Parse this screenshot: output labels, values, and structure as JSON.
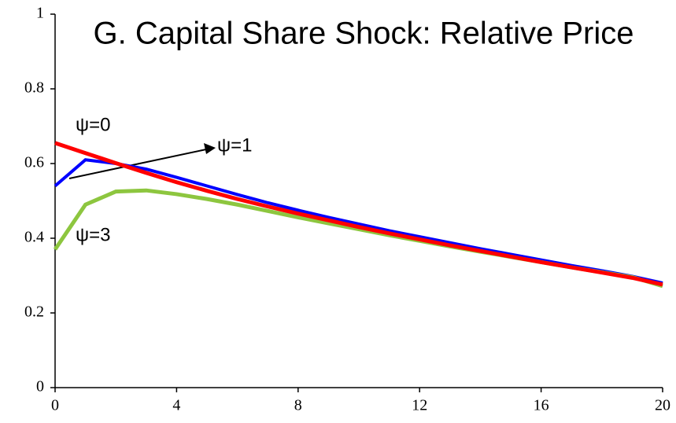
{
  "chart_data": {
    "type": "line",
    "title": "G. Capital Share Shock: Relative Price",
    "x": [
      0,
      1,
      2,
      3,
      4,
      5,
      6,
      7,
      8,
      9,
      10,
      11,
      12,
      13,
      14,
      15,
      16,
      17,
      18,
      19,
      20
    ],
    "series": [
      {
        "name": "ψ=1",
        "color": "#0000ff",
        "values": [
          0.54,
          0.61,
          0.6,
          0.585,
          0.563,
          0.54,
          0.517,
          0.495,
          0.475,
          0.456,
          0.438,
          0.42,
          0.404,
          0.388,
          0.372,
          0.357,
          0.342,
          0.327,
          0.313,
          0.298,
          0.28
        ]
      },
      {
        "name": "ψ=3",
        "color": "#8dc63f",
        "values": [
          0.37,
          0.49,
          0.525,
          0.528,
          0.518,
          0.505,
          0.49,
          0.473,
          0.456,
          0.44,
          0.424,
          0.408,
          0.393,
          0.378,
          0.364,
          0.35,
          0.336,
          0.322,
          0.309,
          0.296,
          0.272
        ]
      },
      {
        "name": "ψ=0",
        "color": "#ff0000",
        "values": [
          0.655,
          0.628,
          0.601,
          0.575,
          0.55,
          0.527,
          0.505,
          0.485,
          0.466,
          0.448,
          0.43,
          0.413,
          0.397,
          0.381,
          0.366,
          0.351,
          0.336,
          0.322,
          0.308,
          0.294,
          0.276
        ]
      }
    ],
    "xlim": [
      0,
      20
    ],
    "xticks": [
      0,
      4,
      8,
      12,
      16,
      20
    ],
    "ylim": [
      0,
      1
    ],
    "yticks": [
      0,
      0.2,
      0.4,
      0.6,
      0.8,
      1
    ]
  }
}
